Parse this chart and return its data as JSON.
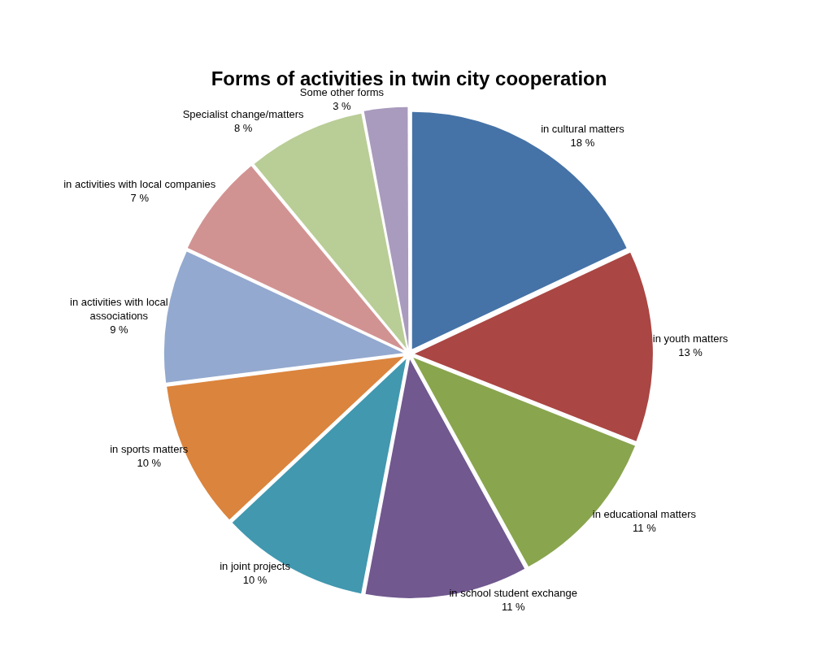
{
  "chart_data": {
    "type": "pie",
    "title": "Forms of activities in twin city cooperation",
    "categories": [
      "in cultural matters",
      "in youth matters",
      "in educational matters",
      "in school student exchange",
      "in joint projects",
      "in sports matters",
      "in activities with local associations",
      "in activities with local companies",
      "Specialist change/matters",
      "Some other forms"
    ],
    "values": [
      18,
      13,
      11,
      11,
      10,
      10,
      9,
      7,
      8,
      3
    ],
    "value_labels": [
      "18 %",
      "13 %",
      "11 %",
      "11 %",
      "10 %",
      "10 %",
      "9 %",
      "7 %",
      "8 %",
      "3 %"
    ],
    "colors": [
      "#4573a7",
      "#aa4643",
      "#89a54e",
      "#71588f",
      "#4198af",
      "#db843d",
      "#93a9cf",
      "#d19392",
      "#b9cd96",
      "#a99bbd"
    ],
    "legend": false
  }
}
